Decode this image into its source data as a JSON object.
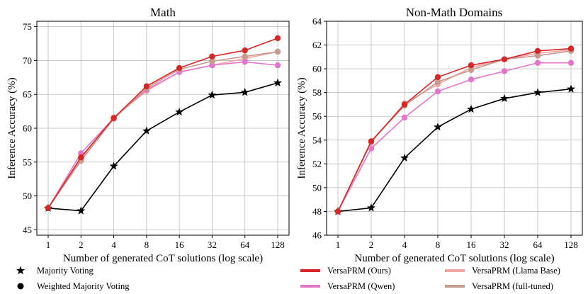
{
  "chart_data": [
    {
      "type": "line",
      "title": "Math",
      "xlabel": "Number of generated CoT solutions (log scale)",
      "ylabel": "Inference Accuracy (%)",
      "xscale": "log2",
      "x": [
        1,
        2,
        4,
        8,
        16,
        32,
        64,
        128
      ],
      "xticklabels": [
        "1",
        "2",
        "4",
        "8",
        "16",
        "32",
        "64",
        "128"
      ],
      "ylim": [
        44.2,
        75.8
      ],
      "yticks": [
        45,
        50,
        55,
        60,
        65,
        70,
        75
      ],
      "grid": true,
      "series": [
        {
          "name": "Majority Voting",
          "method": "majority",
          "color": "#000000",
          "values": [
            48.2,
            47.8,
            54.4,
            59.6,
            62.4,
            64.9,
            65.3,
            66.7
          ]
        },
        {
          "name": "VersaPRM (Llama Base)",
          "method": "weighted",
          "color": "#f4a3a3",
          "values": [
            48.2,
            55.5,
            61.6,
            65.5,
            68.3,
            69.3,
            70.3,
            71.3
          ]
        },
        {
          "name": "VersaPRM (Qwen)",
          "method": "weighted",
          "color": "#e376c9",
          "values": [
            48.2,
            56.3,
            61.5,
            65.7,
            68.3,
            69.3,
            69.8,
            69.3
          ]
        },
        {
          "name": "VersaPRM (full-tuned)",
          "method": "weighted",
          "color": "#c69a8f",
          "values": [
            48.2,
            55.2,
            61.4,
            65.9,
            68.7,
            69.9,
            70.6,
            71.3
          ]
        },
        {
          "name": "VersaPRM (Ours)",
          "method": "weighted",
          "color": "#d62728",
          "values": [
            48.2,
            55.7,
            61.5,
            66.2,
            68.9,
            70.6,
            71.5,
            73.3
          ]
        }
      ]
    },
    {
      "type": "line",
      "title": "Non-Math Domains",
      "xlabel": "Number of generated CoT solutions (log scale)",
      "ylabel": "Inference Accuracy (%)",
      "xscale": "log2",
      "x": [
        1,
        2,
        4,
        8,
        16,
        32,
        64,
        128
      ],
      "xticklabels": [
        "1",
        "2",
        "4",
        "8",
        "16",
        "32",
        "64",
        "128"
      ],
      "ylim": [
        46,
        64
      ],
      "yticks": [
        46,
        48,
        50,
        52,
        54,
        56,
        58,
        60,
        62,
        64
      ],
      "grid": true,
      "series": [
        {
          "name": "Majority Voting",
          "method": "majority",
          "color": "#000000",
          "values": [
            48.0,
            48.3,
            52.5,
            55.1,
            56.6,
            57.5,
            58.0,
            58.3
          ]
        },
        {
          "name": "VersaPRM (Qwen)",
          "method": "weighted",
          "color": "#e376c9",
          "values": [
            48.0,
            53.3,
            55.9,
            58.1,
            59.1,
            59.8,
            60.5,
            60.5
          ]
        },
        {
          "name": "VersaPRM (Llama Base)",
          "method": "weighted",
          "color": "#f4a3a3",
          "values": [
            48.0,
            53.8,
            57.1,
            58.7,
            60.1,
            60.8,
            61.3,
            61.6
          ]
        },
        {
          "name": "VersaPRM (full-tuned)",
          "method": "weighted",
          "color": "#c69a8f",
          "values": [
            48.0,
            53.9,
            56.9,
            58.9,
            59.9,
            60.8,
            61.1,
            61.5
          ]
        },
        {
          "name": "VersaPRM (Ours)",
          "method": "weighted",
          "color": "#d62728",
          "values": [
            48.0,
            53.9,
            57.0,
            59.3,
            60.3,
            60.8,
            61.5,
            61.7
          ]
        }
      ]
    }
  ],
  "legend": {
    "markers": [
      {
        "label": "Majority Voting",
        "icon": "star-icon"
      },
      {
        "label": "Weighted Majority Voting",
        "icon": "circle-icon"
      }
    ],
    "colors": [
      {
        "label": "VersaPRM (Ours)",
        "color": "#d62728"
      },
      {
        "label": "VersaPRM (Llama Base)",
        "color": "#f4a3a3"
      },
      {
        "label": "VersaPRM (Qwen)",
        "color": "#e376c9"
      },
      {
        "label": "VersaPRM (full-tuned)",
        "color": "#c69a8f"
      }
    ]
  }
}
